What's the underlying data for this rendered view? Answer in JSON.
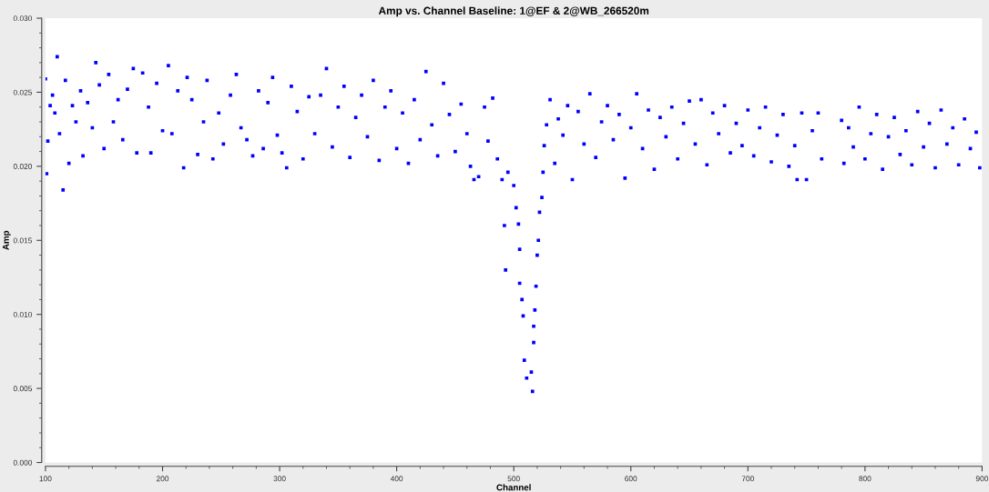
{
  "chart_data": {
    "type": "scatter",
    "title": "Amp vs. Channel Baseline: 1@EF & 2@WB_266520m",
    "xlabel": "Channel",
    "ylabel": "Amp",
    "marker": "square",
    "grid": false,
    "xlim": [
      100,
      900
    ],
    "xticks": [
      100,
      200,
      300,
      400,
      500,
      600,
      700,
      800,
      900
    ],
    "ylim": [
      0,
      0.03
    ],
    "yticks": [
      {
        "value": 0,
        "label": "0.000"
      },
      {
        "value": 0.005,
        "label": "0.005"
      },
      {
        "value": 0.01,
        "label": "0.010"
      },
      {
        "value": 0.015,
        "label": "0.015"
      },
      {
        "value": 0.02,
        "label": "0.020"
      },
      {
        "value": 0.025,
        "label": "0.025"
      },
      {
        "value": 0.03,
        "label": "0.030"
      }
    ],
    "series": [
      {
        "color": "#0000ff",
        "x": [
          100,
          101,
          102,
          104,
          106,
          108,
          110,
          112,
          115,
          117,
          120,
          123,
          126,
          130,
          132,
          136,
          140,
          143,
          146,
          150,
          154,
          158,
          162,
          166,
          170,
          175,
          178,
          183,
          188,
          190,
          195,
          200,
          205,
          208,
          213,
          218,
          221,
          225,
          230,
          235,
          238,
          243,
          248,
          252,
          258,
          263,
          267,
          272,
          277,
          282,
          286,
          290,
          294,
          298,
          302,
          306,
          310,
          315,
          320,
          325,
          330,
          335,
          340,
          345,
          350,
          355,
          360,
          365,
          370,
          375,
          380,
          385,
          390,
          395,
          400,
          405,
          410,
          415,
          420,
          425,
          430,
          435,
          440,
          445,
          450,
          455,
          460,
          463,
          466,
          470,
          475,
          478,
          482,
          486,
          490,
          492,
          493,
          495,
          500,
          502,
          504,
          505,
          505,
          507,
          508,
          509,
          511,
          515,
          516,
          517,
          517,
          518,
          519,
          520,
          521,
          522,
          524,
          525,
          526,
          528,
          531,
          535,
          538,
          542,
          546,
          550,
          555,
          560,
          565,
          570,
          575,
          580,
          585,
          590,
          595,
          600,
          605,
          610,
          615,
          620,
          625,
          630,
          635,
          640,
          645,
          650,
          655,
          660,
          665,
          670,
          675,
          680,
          685,
          690,
          695,
          700,
          705,
          710,
          715,
          720,
          725,
          730,
          735,
          740,
          742,
          746,
          750,
          755,
          760,
          763,
          780,
          782,
          786,
          790,
          795,
          800,
          805,
          810,
          815,
          820,
          825,
          830,
          835,
          840,
          845,
          850,
          855,
          860,
          865,
          870,
          875,
          880,
          885,
          890,
          895,
          898
        ],
        "values": [
          0.0259,
          0.0195,
          0.0217,
          0.0241,
          0.0248,
          0.0236,
          0.0274,
          0.0222,
          0.0184,
          0.0258,
          0.0202,
          0.0241,
          0.023,
          0.0251,
          0.0207,
          0.0243,
          0.0226,
          0.027,
          0.0255,
          0.0212,
          0.0262,
          0.023,
          0.0245,
          0.0218,
          0.0252,
          0.0266,
          0.0209,
          0.0263,
          0.024,
          0.0209,
          0.0256,
          0.0224,
          0.0268,
          0.0222,
          0.0251,
          0.0199,
          0.026,
          0.0245,
          0.0208,
          0.023,
          0.0258,
          0.0205,
          0.0236,
          0.0215,
          0.0248,
          0.0262,
          0.0226,
          0.0218,
          0.0207,
          0.0251,
          0.0212,
          0.0243,
          0.026,
          0.0221,
          0.0209,
          0.0199,
          0.0254,
          0.0237,
          0.0205,
          0.0247,
          0.0222,
          0.0248,
          0.0266,
          0.0213,
          0.024,
          0.0254,
          0.0206,
          0.0233,
          0.0248,
          0.022,
          0.0258,
          0.0204,
          0.024,
          0.0251,
          0.0212,
          0.0236,
          0.0202,
          0.0245,
          0.0218,
          0.0264,
          0.0228,
          0.0207,
          0.0256,
          0.0235,
          0.021,
          0.0242,
          0.0222,
          0.02,
          0.0191,
          0.0193,
          0.024,
          0.0217,
          0.0246,
          0.0205,
          0.0191,
          0.016,
          0.013,
          0.0196,
          0.0187,
          0.0172,
          0.0161,
          0.0144,
          0.0121,
          0.011,
          0.0099,
          0.0069,
          0.0057,
          0.0061,
          0.0048,
          0.0081,
          0.0092,
          0.0103,
          0.0119,
          0.014,
          0.015,
          0.0169,
          0.0179,
          0.0196,
          0.0214,
          0.0228,
          0.0245,
          0.0202,
          0.0232,
          0.0221,
          0.0241,
          0.0191,
          0.0237,
          0.0215,
          0.0249,
          0.0206,
          0.023,
          0.0241,
          0.0218,
          0.0235,
          0.0192,
          0.0226,
          0.0249,
          0.0212,
          0.0238,
          0.0198,
          0.0233,
          0.022,
          0.024,
          0.0205,
          0.0229,
          0.0244,
          0.0215,
          0.0245,
          0.0201,
          0.0236,
          0.0222,
          0.0241,
          0.0209,
          0.0229,
          0.0214,
          0.0238,
          0.0207,
          0.0226,
          0.024,
          0.0203,
          0.0221,
          0.0235,
          0.02,
          0.0214,
          0.0191,
          0.0236,
          0.0191,
          0.0224,
          0.0236,
          0.0205,
          0.0231,
          0.0202,
          0.0226,
          0.0213,
          0.024,
          0.0205,
          0.0222,
          0.0235,
          0.0198,
          0.022,
          0.0233,
          0.0208,
          0.0224,
          0.0201,
          0.0237,
          0.0213,
          0.0229,
          0.0199,
          0.0238,
          0.0215,
          0.0226,
          0.0201,
          0.0232,
          0.0212,
          0.0223,
          0.0199
        ]
      }
    ]
  }
}
